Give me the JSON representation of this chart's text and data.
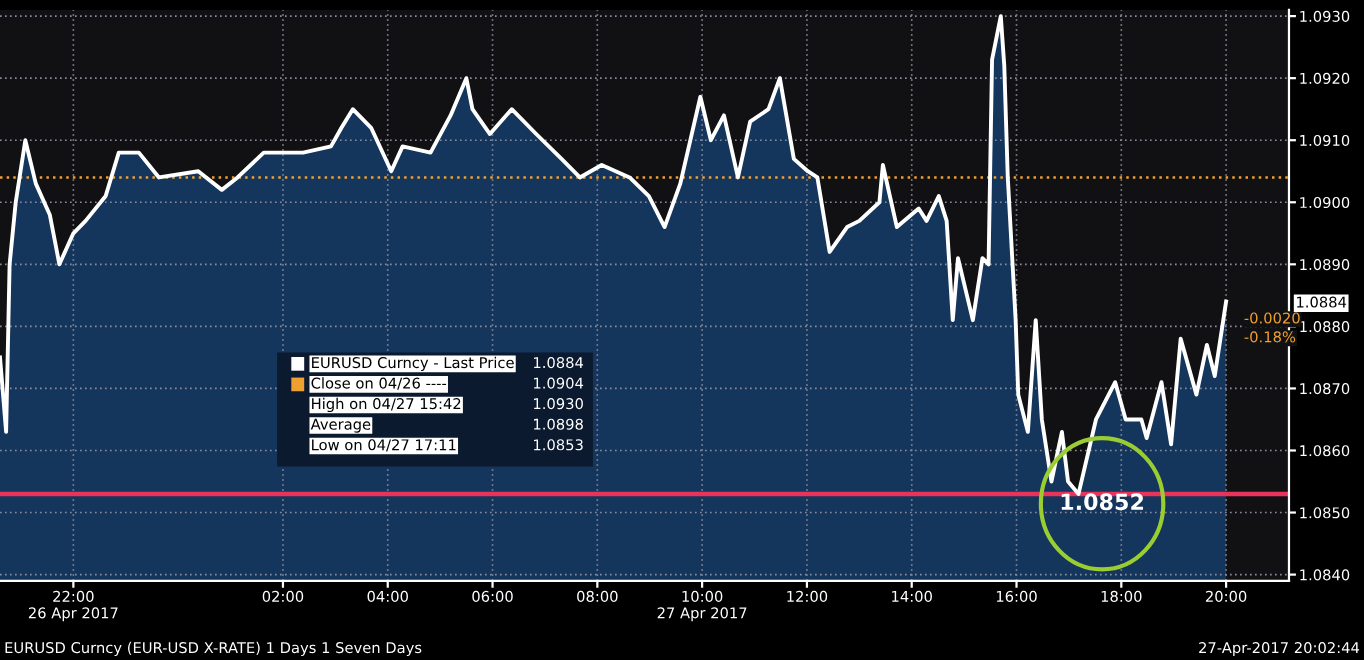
{
  "chart_data": {
    "type": "area",
    "x": [
      "2017-04-26T20:36",
      "2017-04-26T20:43",
      "2017-04-26T20:47",
      "2017-04-26T20:54",
      "2017-04-26T21:05",
      "2017-04-26T21:17",
      "2017-04-26T21:33",
      "2017-04-26T21:44",
      "2017-04-26T22:00",
      "2017-04-26T22:14",
      "2017-04-26T22:37",
      "2017-04-26T22:52",
      "2017-04-26T23:15",
      "2017-04-26T23:38",
      "2017-04-27T00:23",
      "2017-04-27T00:50",
      "2017-04-27T01:08",
      "2017-04-27T01:38",
      "2017-04-27T02:23",
      "2017-04-27T02:55",
      "2017-04-27T03:07",
      "2017-04-27T03:20",
      "2017-04-27T03:41",
      "2017-04-27T04:04",
      "2017-04-27T04:17",
      "2017-04-27T04:49",
      "2017-04-27T05:12",
      "2017-04-27T05:30",
      "2017-04-27T05:37",
      "2017-04-27T05:57",
      "2017-04-27T06:22",
      "2017-04-27T06:50",
      "2017-04-27T07:19",
      "2017-04-27T07:40",
      "2017-04-27T08:05",
      "2017-04-27T08:37",
      "2017-04-27T08:59",
      "2017-04-27T09:17",
      "2017-04-27T09:35",
      "2017-04-27T09:58",
      "2017-04-27T10:10",
      "2017-04-27T10:25",
      "2017-04-27T10:41",
      "2017-04-27T10:55",
      "2017-04-27T11:16",
      "2017-04-27T11:29",
      "2017-04-27T11:45",
      "2017-04-27T12:01",
      "2017-04-27T12:12",
      "2017-04-27T12:26",
      "2017-04-27T12:46",
      "2017-04-27T13:00",
      "2017-04-27T13:23",
      "2017-04-27T13:27",
      "2017-04-27T13:43",
      "2017-04-27T14:08",
      "2017-04-27T14:17",
      "2017-04-27T14:31",
      "2017-04-27T14:40",
      "2017-04-27T14:47",
      "2017-04-27T14:53",
      "2017-04-27T15:10",
      "2017-04-27T15:21",
      "2017-04-27T15:28",
      "2017-04-27T15:32",
      "2017-04-27T15:42",
      "2017-04-27T15:46",
      "2017-04-27T15:50",
      "2017-04-27T15:59",
      "2017-04-27T16:02",
      "2017-04-27T16:13",
      "2017-04-27T16:22",
      "2017-04-27T16:29",
      "2017-04-27T16:40",
      "2017-04-27T16:52",
      "2017-04-27T16:59",
      "2017-04-27T17:11",
      "2017-04-27T17:31",
      "2017-04-27T17:53",
      "2017-04-27T18:05",
      "2017-04-27T18:23",
      "2017-04-27T18:29",
      "2017-04-27T18:46",
      "2017-04-27T18:57",
      "2017-04-27T19:08",
      "2017-04-27T19:26",
      "2017-04-27T19:38",
      "2017-04-27T19:47",
      "2017-04-27T20:00"
    ],
    "series": [
      {
        "color": "#ffffff",
        "values": [
          1.0875,
          1.0863,
          1.089,
          1.09,
          1.091,
          1.0903,
          1.0898,
          1.089,
          1.0895,
          1.0897,
          1.0901,
          1.0908,
          1.0908,
          1.0904,
          1.0905,
          1.0902,
          1.0904,
          1.0908,
          1.0908,
          1.0909,
          1.0912,
          1.0915,
          1.0912,
          1.0905,
          1.0909,
          1.0908,
          1.0914,
          1.092,
          1.0915,
          1.0911,
          1.0915,
          1.0911,
          1.0907,
          1.0904,
          1.0906,
          1.0904,
          1.0901,
          1.0896,
          1.0903,
          1.0917,
          1.091,
          1.0914,
          1.0904,
          1.0913,
          1.0915,
          1.092,
          1.0907,
          1.0905,
          1.0904,
          1.0892,
          1.0896,
          1.0897,
          1.09,
          1.0906,
          1.0896,
          1.0899,
          1.0897,
          1.0901,
          1.0897,
          1.0881,
          1.0891,
          1.0881,
          1.0891,
          1.089,
          1.0923,
          1.093,
          1.0922,
          1.0904,
          1.0881,
          1.0869,
          1.0863,
          1.0881,
          1.0865,
          1.0855,
          1.0863,
          1.0855,
          1.0853,
          1.0865,
          1.0871,
          1.0865,
          1.0865,
          1.0862,
          1.0871,
          1.0861,
          1.0878,
          1.0869,
          1.0877,
          1.0872,
          1.0884
        ]
      }
    ],
    "xlim": [
      "2017-04-26T20:36",
      "2017-04-27T21:12"
    ],
    "xticks": [
      {
        "value": "2017-04-26T22:00",
        "label": "22:00\n26 Apr 2017"
      },
      {
        "value": "2017-04-27T02:00",
        "label": "02:00"
      },
      {
        "value": "2017-04-27T04:00",
        "label": "04:00"
      },
      {
        "value": "2017-04-27T06:00",
        "label": "06:00"
      },
      {
        "value": "2017-04-27T08:00",
        "label": "08:00"
      },
      {
        "value": "2017-04-27T10:00",
        "label": "10:00\n27 Apr 2017"
      },
      {
        "value": "2017-04-27T12:00",
        "label": "12:00"
      },
      {
        "value": "2017-04-27T14:00",
        "label": "14:00"
      },
      {
        "value": "2017-04-27T16:00",
        "label": "16:00"
      },
      {
        "value": "2017-04-27T18:00",
        "label": "18:00"
      },
      {
        "value": "2017-04-27T20:00",
        "label": "20:00"
      }
    ],
    "ylim": [
      1.0839,
      1.0931
    ],
    "yticks": [
      {
        "value": 1.084,
        "label": "1.0840"
      },
      {
        "value": 1.085,
        "label": "1.0850"
      },
      {
        "value": 1.086,
        "label": "1.0860"
      },
      {
        "value": 1.087,
        "label": "1.0870"
      },
      {
        "value": 1.088,
        "label": "1.0880"
      },
      {
        "value": 1.089,
        "label": "1.0890"
      },
      {
        "value": 1.09,
        "label": "1.0900"
      },
      {
        "value": 1.091,
        "label": "1.0910"
      },
      {
        "value": 1.092,
        "label": "1.0920"
      },
      {
        "value": 1.093,
        "label": "1.0930"
      }
    ],
    "grid": true,
    "ref_lines": [
      {
        "axis": "y",
        "value": 1.0904,
        "color": "#f0a030",
        "line_style": "dotted"
      },
      {
        "axis": "y",
        "value": 1.0853,
        "color": "#e8335a",
        "line_style": "solid"
      }
    ],
    "annotations": [
      "EURUSD Curncy - Last Price",
      "Close on 04/26 ----",
      "High on 04/27 15:42",
      "Average",
      "Low on 04/27 17:11",
      "1.0884",
      "1.0904",
      "1.0930",
      "1.0898",
      "1.0853",
      "EURUSD Curncy (EUR-USD X-RATE) 1 Days 1 Seven Days",
      "27-Apr-2017 20:02:44",
      "1.0852",
      "1.0884",
      "-0.0020",
      "-0.18%"
    ]
  }
}
